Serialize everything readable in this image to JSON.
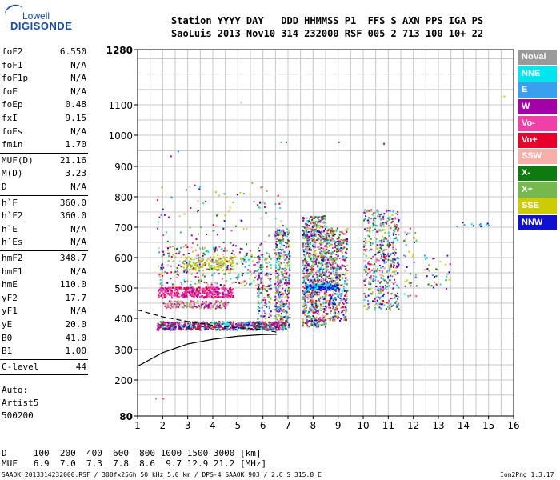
{
  "logo": {
    "line1": "Lowell",
    "line2": "DIGISONDE"
  },
  "header": {
    "line1": "Station YYYY DAY   DDD HHMMSS P1  FFS S AXN PPS IGA PS",
    "line2": "SaoLuis 2013 Nov10 314 232000 RSF 005 2 713 100 10+ 22"
  },
  "params": [
    {
      "k": "foF2",
      "v": "6.550"
    },
    {
      "k": "foF1",
      "v": "N/A"
    },
    {
      "k": "foF1p",
      "v": "N/A"
    },
    {
      "k": "foE",
      "v": "N/A"
    },
    {
      "k": "foEp",
      "v": "0.48"
    },
    {
      "k": "fxI",
      "v": "9.15"
    },
    {
      "k": "foEs",
      "v": "N/A"
    },
    {
      "k": "fmin",
      "v": "1.70"
    },
    {
      "k": "MUF(D)",
      "v": "21.16"
    },
    {
      "k": "M(D)",
      "v": "3.23"
    },
    {
      "k": "D",
      "v": "N/A"
    },
    {
      "k": "h`F",
      "v": "360.0"
    },
    {
      "k": "h`F2",
      "v": "360.0"
    },
    {
      "k": "h`E",
      "v": "N/A"
    },
    {
      "k": "h`Es",
      "v": "N/A"
    },
    {
      "k": "hmF2",
      "v": "348.7"
    },
    {
      "k": "hmF1",
      "v": "N/A"
    },
    {
      "k": "hmE",
      "v": "110.0"
    },
    {
      "k": "yF2",
      "v": "17.7"
    },
    {
      "k": "yF1",
      "v": "N/A"
    },
    {
      "k": "yE",
      "v": "20.0"
    },
    {
      "k": "B0",
      "v": "41.0"
    },
    {
      "k": "B1",
      "v": "1.00"
    },
    {
      "k": "C-level",
      "v": "44"
    }
  ],
  "auto": {
    "line1": "Auto:",
    "line2": "Artist5",
    "line3": "500200"
  },
  "legend": [
    {
      "label": "NoVal",
      "color": "#9a9a9a"
    },
    {
      "label": "NNE",
      "color": "#00e5ee"
    },
    {
      "label": "E",
      "color": "#39a0f0"
    },
    {
      "label": "W",
      "color": "#a400a8"
    },
    {
      "label": "Vo-",
      "color": "#f040a8"
    },
    {
      "label": "Vo+",
      "color": "#e8002a"
    },
    {
      "label": "SSW",
      "color": "#f4b0a8"
    },
    {
      "label": "X-",
      "color": "#0e7a10"
    },
    {
      "label": "X+",
      "color": "#76b84c"
    },
    {
      "label": "SSE",
      "color": "#cccc00"
    },
    {
      "label": "NNW",
      "color": "#1010d0"
    }
  ],
  "footer": {
    "d_line": "D     100  200  400  600  800 1000 1500 3000 [km]",
    "muf_line": "MUF   6.9  7.0  7.3  7.8  8.6  9.7 12.9 21.2 [MHz]",
    "info": "SAAOK_2013314232000.RSF / 300fx256h 50 kHz 5.0 km / DPS-4 SAAOK 903 / 2.6 S 315.8 E",
    "version": "Ion2Png 1.3.17"
  },
  "chart_data": {
    "type": "scatter",
    "title": "",
    "xlabel": "",
    "ylabel": "",
    "xlim": [
      1,
      16
    ],
    "ylim": [
      80,
      1280
    ],
    "x_ticks": [
      1,
      2,
      3,
      4,
      5,
      6,
      7,
      8,
      9,
      10,
      11,
      12,
      13,
      14,
      15,
      16
    ],
    "y_ticks": [
      80,
      200,
      300,
      400,
      500,
      600,
      700,
      800,
      900,
      1000,
      1100,
      1280
    ],
    "y_scale": "ionogram (compressed near top)",
    "grid": true,
    "series": [
      {
        "name": "Vo-",
        "note": "virtual height trace (F-layer echoes)",
        "points": [
          [
            1.8,
            375
          ],
          [
            2.5,
            378
          ],
          [
            3.5,
            380
          ],
          [
            4.5,
            382
          ],
          [
            5.5,
            378
          ],
          [
            6.5,
            372
          ]
        ]
      },
      {
        "name": "W",
        "points": [
          [
            1.9,
            480
          ],
          [
            2.6,
            480
          ],
          [
            3.2,
            485
          ],
          [
            4.0,
            478
          ],
          [
            4.8,
            488
          ]
        ]
      },
      {
        "name": "NNW",
        "points": [
          [
            7.9,
            505
          ],
          [
            8.5,
            500
          ],
          [
            9.0,
            495
          ],
          [
            7.8,
            380
          ]
        ]
      }
    ],
    "profile_curve": [
      [
        1,
        245
      ],
      [
        2,
        290
      ],
      [
        3,
        318
      ],
      [
        4,
        333
      ],
      [
        5,
        343
      ],
      [
        6,
        348
      ],
      [
        6.55,
        349
      ]
    ],
    "dashed_curve": [
      [
        1,
        428
      ],
      [
        2,
        405
      ],
      [
        3,
        390
      ],
      [
        4,
        378
      ],
      [
        5,
        370
      ],
      [
        6,
        364
      ],
      [
        6.55,
        356
      ]
    ]
  }
}
